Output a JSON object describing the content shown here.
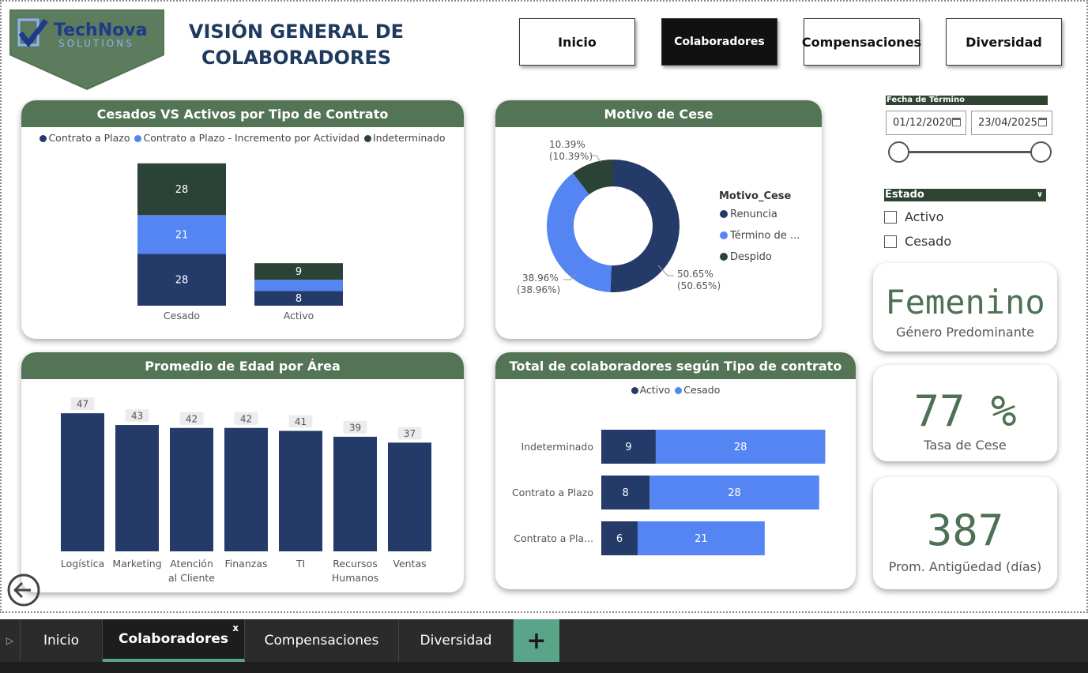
{
  "logo": {
    "brand": "TechNova",
    "sub": "SOLUTIONS"
  },
  "title": {
    "line1": "VISIÓN GENERAL DE",
    "line2": "COLABORADORES"
  },
  "nav": [
    {
      "label": "Inicio",
      "active": false
    },
    {
      "label": "Colaboradores",
      "active": true
    },
    {
      "label": "Compensaciones",
      "active": false
    },
    {
      "label": "Diversidad",
      "active": false
    }
  ],
  "card_contract": {
    "title": "Cesados VS Activos por Tipo de Contrato",
    "legend": [
      "Contrato a Plazo",
      "Contrato a Plazo - Incremento por Actividad",
      "Indeterminado"
    ]
  },
  "card_motivo": {
    "title": "Motivo de Cese",
    "legend_title": "Motivo_Cese",
    "legend": [
      "Renuncia",
      "Término de ...",
      "Despido"
    ],
    "labels": {
      "renuncia": [
        "50.65%",
        "(50.65%)"
      ],
      "termino": [
        "38.96%",
        "(38.96%)"
      ],
      "despido": [
        "10.39%",
        "(10.39%)"
      ]
    }
  },
  "card_edad": {
    "title": "Promedio de Edad por Área"
  },
  "card_total": {
    "title": "Total de colaboradores según Tipo de contrato",
    "legend": [
      "Activo",
      "Cesado"
    ]
  },
  "filters": {
    "fecha_title": "Fecha de Término",
    "date_start": "01/12/2020",
    "date_end": "23/04/2025",
    "estado_title": "Estado",
    "estado_options": [
      "Activo",
      "Cesado"
    ]
  },
  "kpis": {
    "genero": {
      "value": "Femenino",
      "label": "Género Predominante"
    },
    "tasa": {
      "value": "77 %",
      "label": "Tasa de Cese"
    },
    "antiguedad": {
      "value": "387",
      "label": "Prom. Antigüedad (días)"
    }
  },
  "tabs": [
    "Inicio",
    "Colaboradores",
    "Compensaciones",
    "Diversidad"
  ],
  "colors": {
    "navy": "#243a69",
    "blue": "#5585f2",
    "green": "#2b4236",
    "header": "#547456",
    "accent": "#5aa58a"
  },
  "chart_data": [
    {
      "type": "bar",
      "stacked": true,
      "title": "Cesados VS Activos por Tipo de Contrato",
      "categories": [
        "Cesado",
        "Activo"
      ],
      "series": [
        {
          "name": "Contrato a Plazo",
          "values": [
            28,
            8
          ],
          "color": "#243a69"
        },
        {
          "name": "Contrato a Plazo - Incremento por Actividad",
          "values": [
            21,
            6
          ],
          "color": "#5585f2"
        },
        {
          "name": "Indeterminado",
          "values": [
            28,
            9
          ],
          "color": "#2b4236"
        }
      ],
      "labels": [
        [
          "28",
          "8"
        ],
        [
          "21",
          ""
        ],
        [
          "28",
          "9"
        ]
      ]
    },
    {
      "type": "pie",
      "title": "Motivo de Cese",
      "categories": [
        "Renuncia",
        "Término de ...",
        "Despido"
      ],
      "values": [
        50.65,
        38.96,
        10.39
      ],
      "colors": [
        "#243a69",
        "#5585f2",
        "#2b4236"
      ]
    },
    {
      "type": "bar",
      "title": "Promedio de Edad por Área",
      "categories": [
        "Logística",
        "Marketing",
        "Atención al Cliente",
        "Finanzas",
        "TI",
        "Recursos Humanos",
        "Ventas"
      ],
      "category_lines": [
        [
          "Logística"
        ],
        [
          "Marketing"
        ],
        [
          "Atención",
          "al Cliente"
        ],
        [
          "Finanzas"
        ],
        [
          "TI"
        ],
        [
          "Recursos",
          "Humanos"
        ],
        [
          "Ventas"
        ]
      ],
      "values": [
        47,
        43,
        42,
        42,
        41,
        39,
        37
      ],
      "ylim": [
        0,
        50
      ]
    },
    {
      "type": "bar",
      "orientation": "horizontal",
      "stacked": true,
      "title": "Total de colaboradores según Tipo de contrato",
      "categories": [
        "Indeterminado",
        "Contrato a Plazo",
        "Contrato a Pla..."
      ],
      "series": [
        {
          "name": "Activo",
          "values": [
            9,
            8,
            6
          ],
          "color": "#243a69"
        },
        {
          "name": "Cesado",
          "values": [
            28,
            28,
            21
          ],
          "color": "#5585f2"
        }
      ]
    }
  ]
}
